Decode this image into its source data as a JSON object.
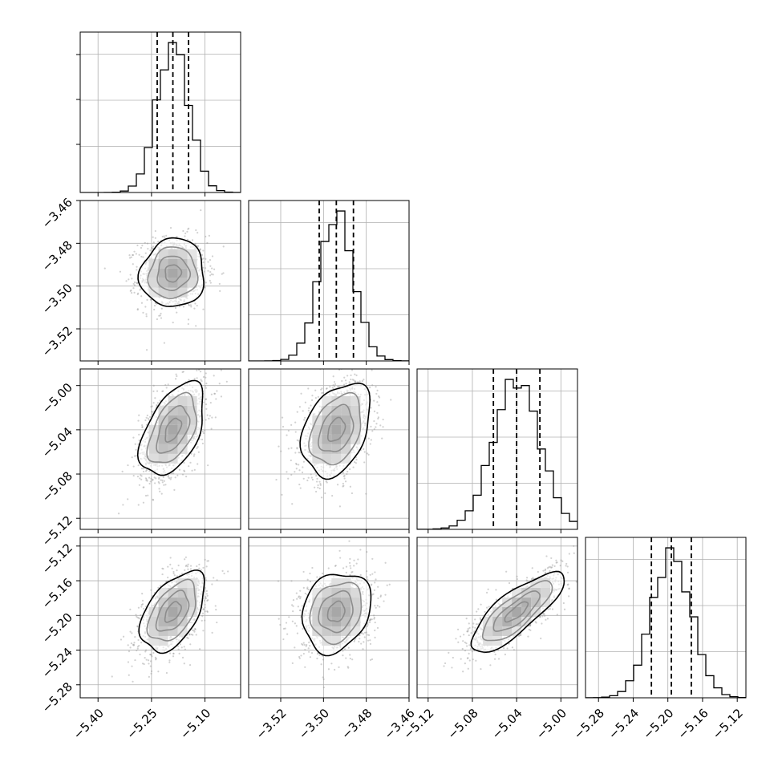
{
  "chart_data": {
    "type": "corner",
    "description_of_layout": "4x4 lower-triangular corner plot: diagonal panels show 1D histograms with dashed quantile lines; off-diagonal panels show 2D density (grey points, shaded bins, black contours).",
    "parameters": [
      {
        "index": 0,
        "range": [
          -5.45,
          -5.0
        ],
        "x_ticks": [
          "−5.40",
          "−5.25",
          "−5.10"
        ],
        "x_tick_values": [
          -5.4,
          -5.25,
          -5.1
        ],
        "median": -5.19,
        "q16": -5.234,
        "q84": -5.146,
        "sigma": 0.045
      },
      {
        "index": 1,
        "range": [
          -3.535,
          -3.46
        ],
        "x_ticks": [
          "−3.52",
          "−3.50",
          "−3.48",
          "−3.46"
        ],
        "x_tick_values": [
          -3.52,
          -3.5,
          -3.48,
          -3.46
        ],
        "y_ticks": [
          "−3.46",
          "−3.48",
          "−3.50",
          "−3.52"
        ],
        "y_tick_values": [
          -3.46,
          -3.48,
          -3.5,
          -3.52
        ],
        "median": -3.494,
        "q16": -3.502,
        "q84": -3.486,
        "sigma": 0.008
      },
      {
        "index": 2,
        "range": [
          -5.13,
          -4.985
        ],
        "x_ticks": [
          "−5.12",
          "−5.08",
          "−5.04",
          "−5.00"
        ],
        "x_tick_values": [
          -5.12,
          -5.08,
          -5.04,
          -5.0
        ],
        "y_ticks": [
          "−5.00",
          "−5.04",
          "−5.08",
          "−5.12"
        ],
        "y_tick_values": [
          -5.0,
          -5.04,
          -5.08,
          -5.12
        ],
        "median": -5.04,
        "q16": -5.061,
        "q84": -5.019,
        "sigma": 0.021
      },
      {
        "index": 3,
        "range": [
          -5.295,
          -5.11
        ],
        "x_ticks": [
          "−5.28",
          "−5.24",
          "−5.20",
          "−5.16",
          "−5.12"
        ],
        "x_tick_values": [
          -5.28,
          -5.24,
          -5.2,
          -5.16,
          -5.12
        ],
        "y_ticks": [
          "−5.12",
          "−5.16",
          "−5.20",
          "−5.24",
          "−5.28"
        ],
        "y_tick_values": [
          -5.12,
          -5.16,
          -5.2,
          -5.24,
          -5.28
        ],
        "median": -5.196,
        "q16": -5.219,
        "q84": -5.173,
        "sigma": 0.023
      }
    ],
    "correlations": [
      {
        "i": 1,
        "j": 0,
        "rho": 0.05
      },
      {
        "i": 2,
        "j": 0,
        "rho": 0.5
      },
      {
        "i": 2,
        "j": 1,
        "rho": 0.35
      },
      {
        "i": 3,
        "j": 0,
        "rho": 0.5
      },
      {
        "i": 3,
        "j": 1,
        "rho": 0.2
      },
      {
        "i": 3,
        "j": 2,
        "rho": 0.8
      }
    ],
    "histogram_bins": 20,
    "quantiles": [
      0.16,
      0.5,
      0.84
    ],
    "grid": true
  }
}
